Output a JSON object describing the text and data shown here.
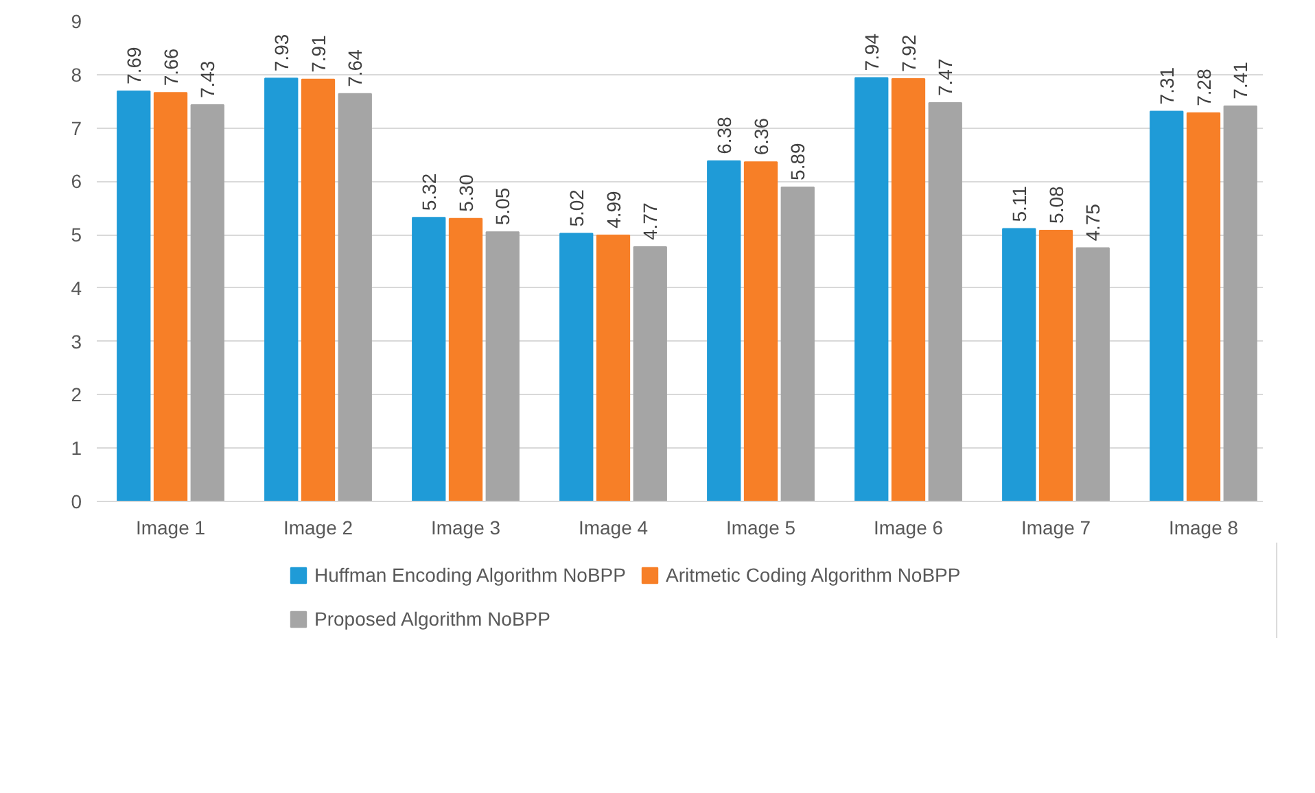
{
  "chart_data": {
    "type": "bar",
    "categories": [
      "Image 1",
      "Image 2",
      "Image 3",
      "Image 4",
      "Image 5",
      "Image 6",
      "Image 7",
      "Image 8"
    ],
    "series": [
      {
        "name": "Huffman Encoding Algorithm NoBPP",
        "color": "#1f9bd7",
        "values": [
          7.69,
          7.93,
          5.32,
          5.02,
          6.38,
          7.94,
          5.11,
          7.31
        ],
        "value_labels": [
          "7.69",
          "7.93",
          "5.32",
          "5.02",
          "6.38",
          "7.94",
          "5.11",
          "7.31"
        ]
      },
      {
        "name": "Aritmetic Coding Algorithm NoBPP",
        "color": "#f77f27",
        "values": [
          7.66,
          7.91,
          5.3,
          4.99,
          6.36,
          7.92,
          5.08,
          7.28
        ],
        "value_labels": [
          "7.66",
          "7.91",
          "5.30",
          "4.99",
          "6.36",
          "7.92",
          "5.08",
          "7.28"
        ]
      },
      {
        "name": "Proposed Algorithm NoBPP",
        "color": "#a5a5a5",
        "values": [
          7.43,
          7.64,
          5.05,
          4.77,
          5.89,
          7.47,
          4.75,
          7.41
        ],
        "value_labels": [
          "7.43",
          "7.64",
          "5.05",
          "4.77",
          "5.89",
          "7.47",
          "4.75",
          "7.41"
        ]
      }
    ],
    "ylim": [
      0,
      9
    ],
    "yticks": [
      0,
      1,
      2,
      3,
      4,
      5,
      6,
      7,
      8,
      9
    ],
    "grid": "y",
    "legend": "bottom"
  }
}
